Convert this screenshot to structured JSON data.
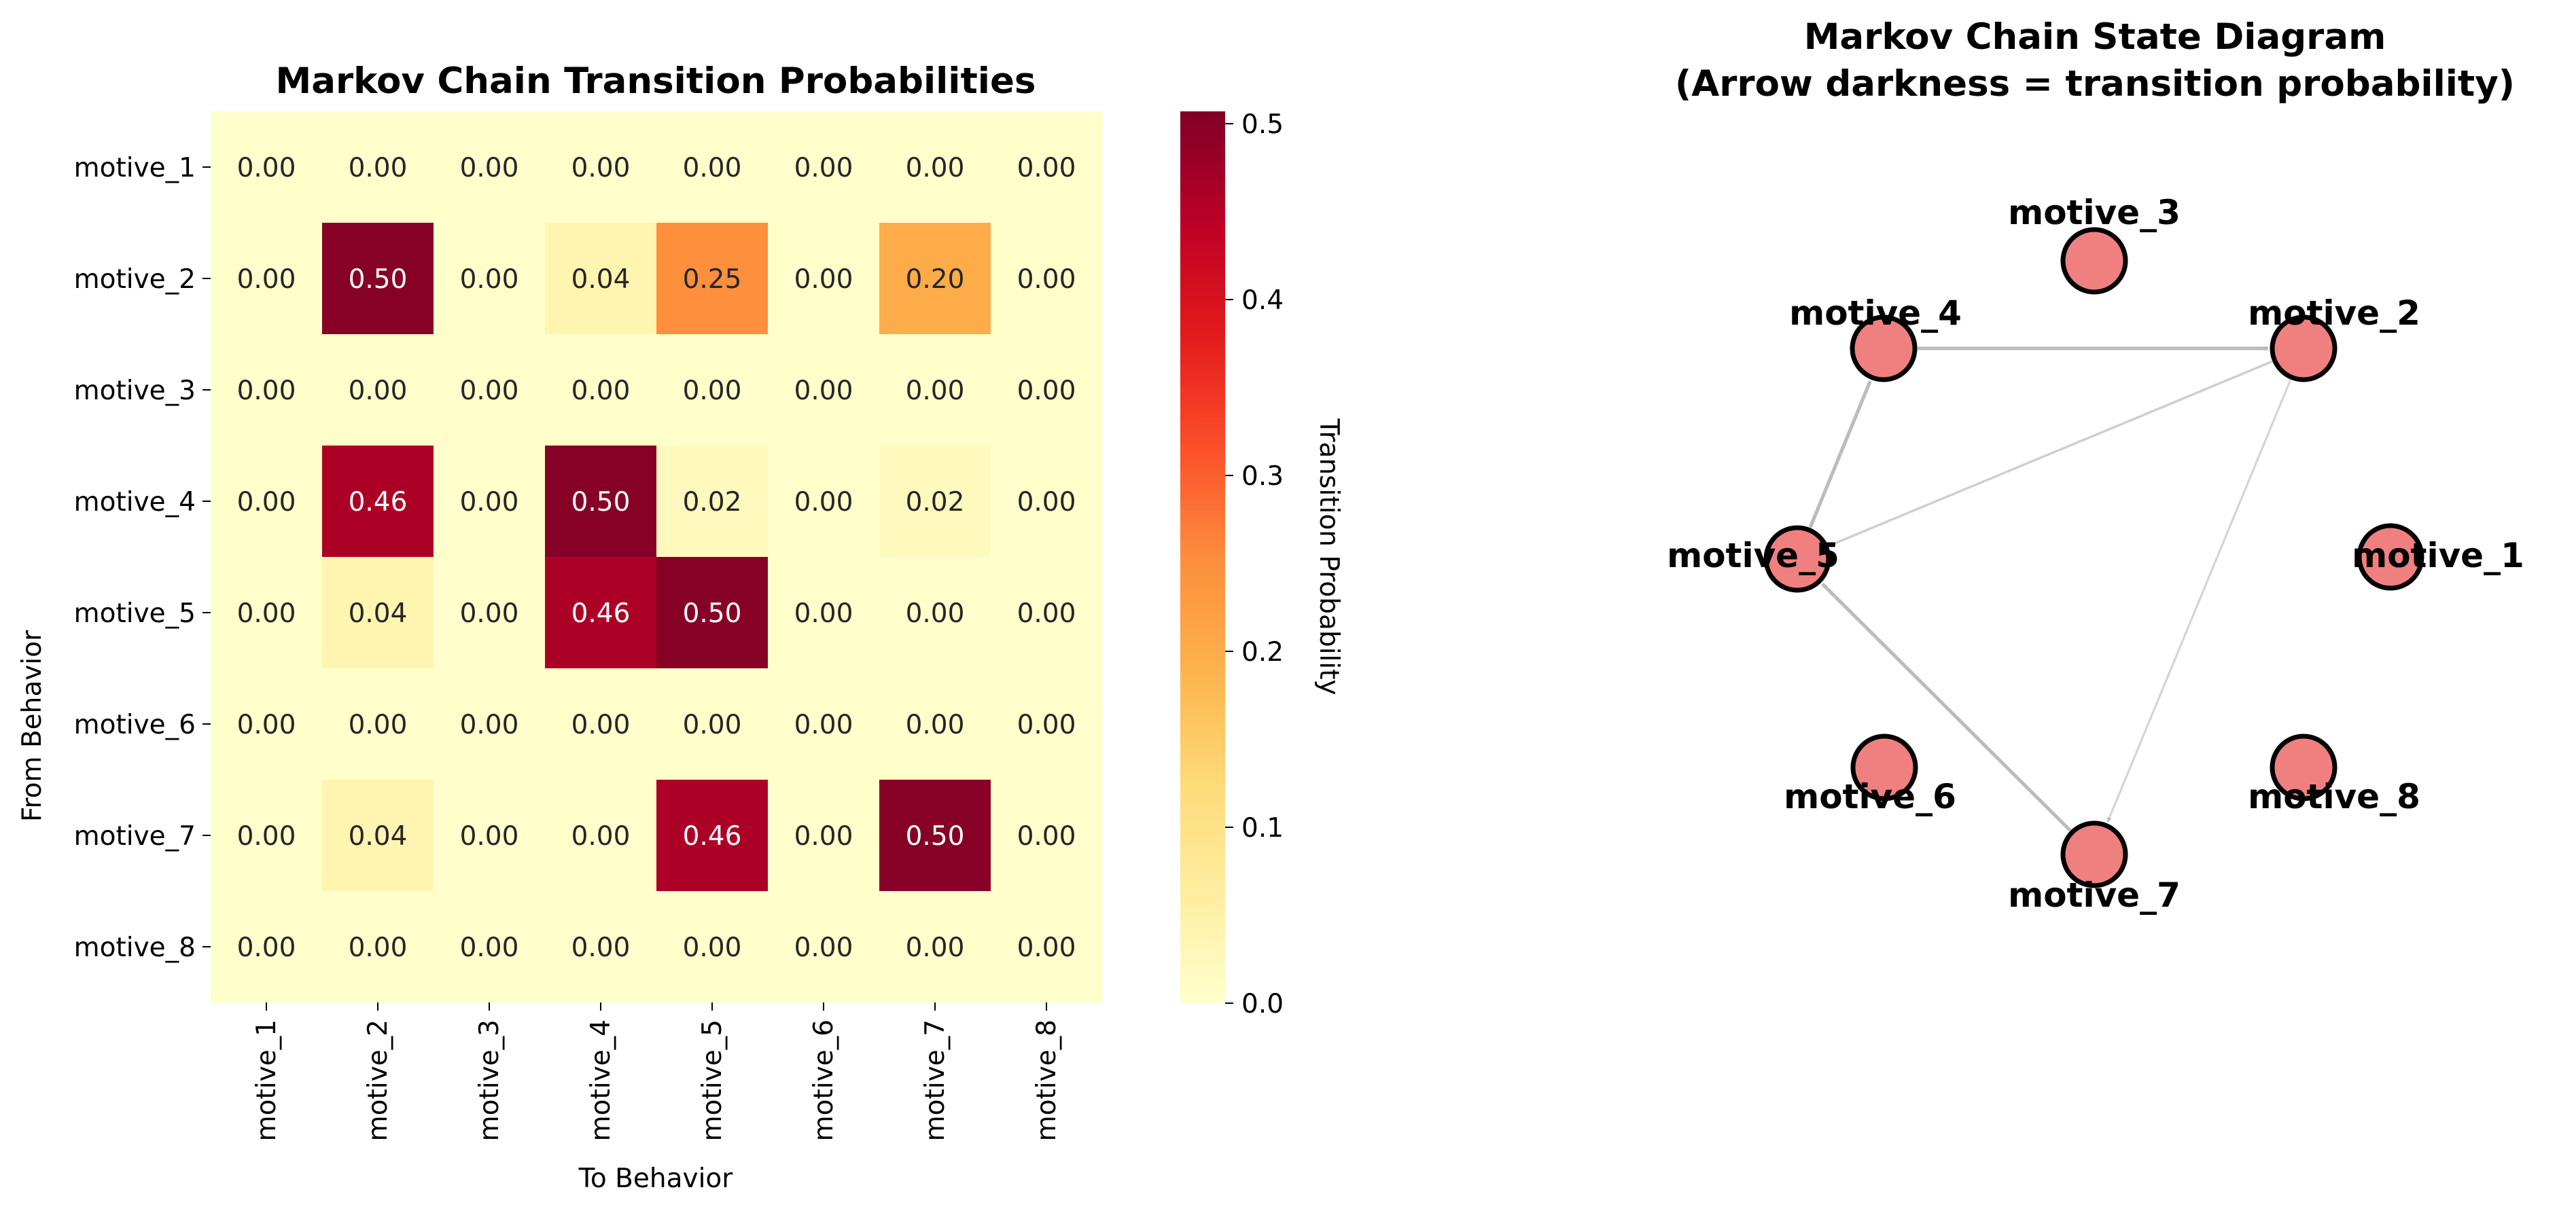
{
  "chart_data": [
    {
      "type": "heatmap",
      "title": "Markov Chain Transition Probabilities",
      "xlabel": "To Behavior",
      "ylabel": "From Behavior",
      "x_categories": [
        "motive_1",
        "motive_2",
        "motive_3",
        "motive_4",
        "motive_5",
        "motive_6",
        "motive_7",
        "motive_8"
      ],
      "y_categories": [
        "motive_1",
        "motive_2",
        "motive_3",
        "motive_4",
        "motive_5",
        "motive_6",
        "motive_7",
        "motive_8"
      ],
      "values": [
        [
          0.0,
          0.0,
          0.0,
          0.0,
          0.0,
          0.0,
          0.0,
          0.0
        ],
        [
          0.0,
          0.5,
          0.0,
          0.04,
          0.25,
          0.0,
          0.2,
          0.0
        ],
        [
          0.0,
          0.0,
          0.0,
          0.0,
          0.0,
          0.0,
          0.0,
          0.0
        ],
        [
          0.0,
          0.46,
          0.0,
          0.5,
          0.02,
          0.0,
          0.02,
          0.0
        ],
        [
          0.0,
          0.04,
          0.0,
          0.46,
          0.5,
          0.0,
          0.0,
          0.0
        ],
        [
          0.0,
          0.0,
          0.0,
          0.0,
          0.0,
          0.0,
          0.0,
          0.0
        ],
        [
          0.0,
          0.04,
          0.0,
          0.0,
          0.46,
          0.0,
          0.5,
          0.0
        ],
        [
          0.0,
          0.0,
          0.0,
          0.0,
          0.0,
          0.0,
          0.0,
          0.0
        ]
      ],
      "annotation_format": "2 decimals",
      "colormap": "YlOrRd",
      "colormap_stops": [
        "#ffffcc",
        "#ffeda0",
        "#fed976",
        "#feb24c",
        "#fd8d3c",
        "#fc4e2a",
        "#e31a1c",
        "#bd0026",
        "#800026"
      ],
      "colorbar": {
        "label": "Transition Probability",
        "range": [
          0,
          0.507
        ],
        "ticks": [
          "0.0",
          "0.1",
          "0.2",
          "0.3",
          "0.4",
          "0.5"
        ]
      }
    },
    {
      "type": "network",
      "title_lines": [
        "Markov Chain State Diagram",
        "(Arrow darkness = transition probability)"
      ],
      "node_color": "#f08080",
      "node_edge_color": "#000000",
      "edge_color": "#bbbbbb",
      "nodes": [
        "motive_1",
        "motive_2",
        "motive_3",
        "motive_4",
        "motive_5",
        "motive_6",
        "motive_7",
        "motive_8"
      ],
      "edges": [
        {
          "from": "motive_4",
          "to": "motive_2",
          "probability": 0.46
        },
        {
          "from": "motive_5",
          "to": "motive_4",
          "probability": 0.46
        },
        {
          "from": "motive_7",
          "to": "motive_5",
          "probability": 0.46
        },
        {
          "from": "motive_2",
          "to": "motive_5",
          "probability": 0.25
        },
        {
          "from": "motive_2",
          "to": "motive_7",
          "probability": 0.2
        }
      ]
    }
  ]
}
